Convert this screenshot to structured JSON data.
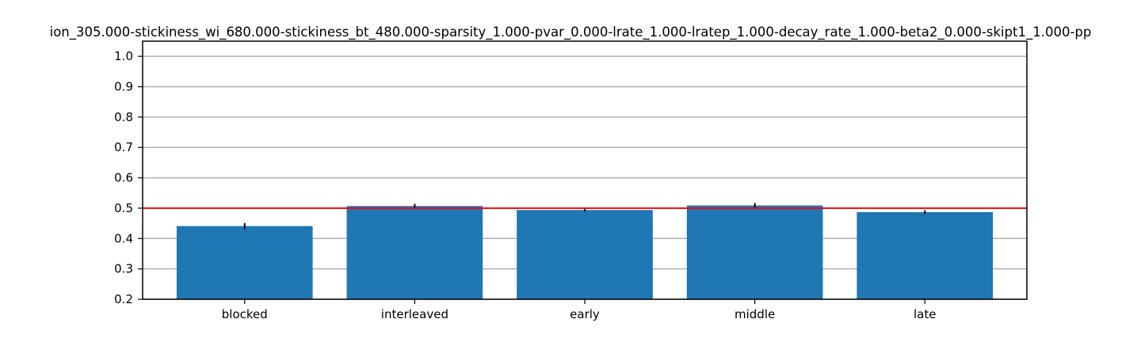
{
  "chart_data": {
    "type": "bar",
    "title": "ion_305.000-stickiness_wi_680.000-stickiness_bt_480.000-sparsity_1.000-pvar_0.000-lrate_1.000-lratep_1.000-decay_rate_1.000-beta2_0.000-skipt1_1.000-pp",
    "xlabel": "",
    "ylabel": "",
    "categories": [
      "blocked",
      "interleaved",
      "early",
      "middle",
      "late"
    ],
    "values": [
      0.441,
      0.507,
      0.494,
      0.509,
      0.487
    ],
    "errors": [
      0.01,
      0.007,
      0.005,
      0.008,
      0.006
    ],
    "ylim": [
      0.2,
      1.05
    ],
    "yticks": [
      0.2,
      0.3,
      0.4,
      0.5,
      0.6,
      0.7,
      0.8,
      0.9,
      1.0
    ],
    "ytick_labels": [
      "0.2",
      "0.3",
      "0.4",
      "0.5",
      "0.6",
      "0.7",
      "0.8",
      "0.9",
      "1.0"
    ],
    "reference_line": 0.5,
    "grid": "horizontal",
    "legend": "none",
    "colors": {
      "bar": "#1f77b4",
      "reference_line": "#ff0000",
      "grid": "#b0b0b0",
      "error_bar": "#000000"
    }
  }
}
